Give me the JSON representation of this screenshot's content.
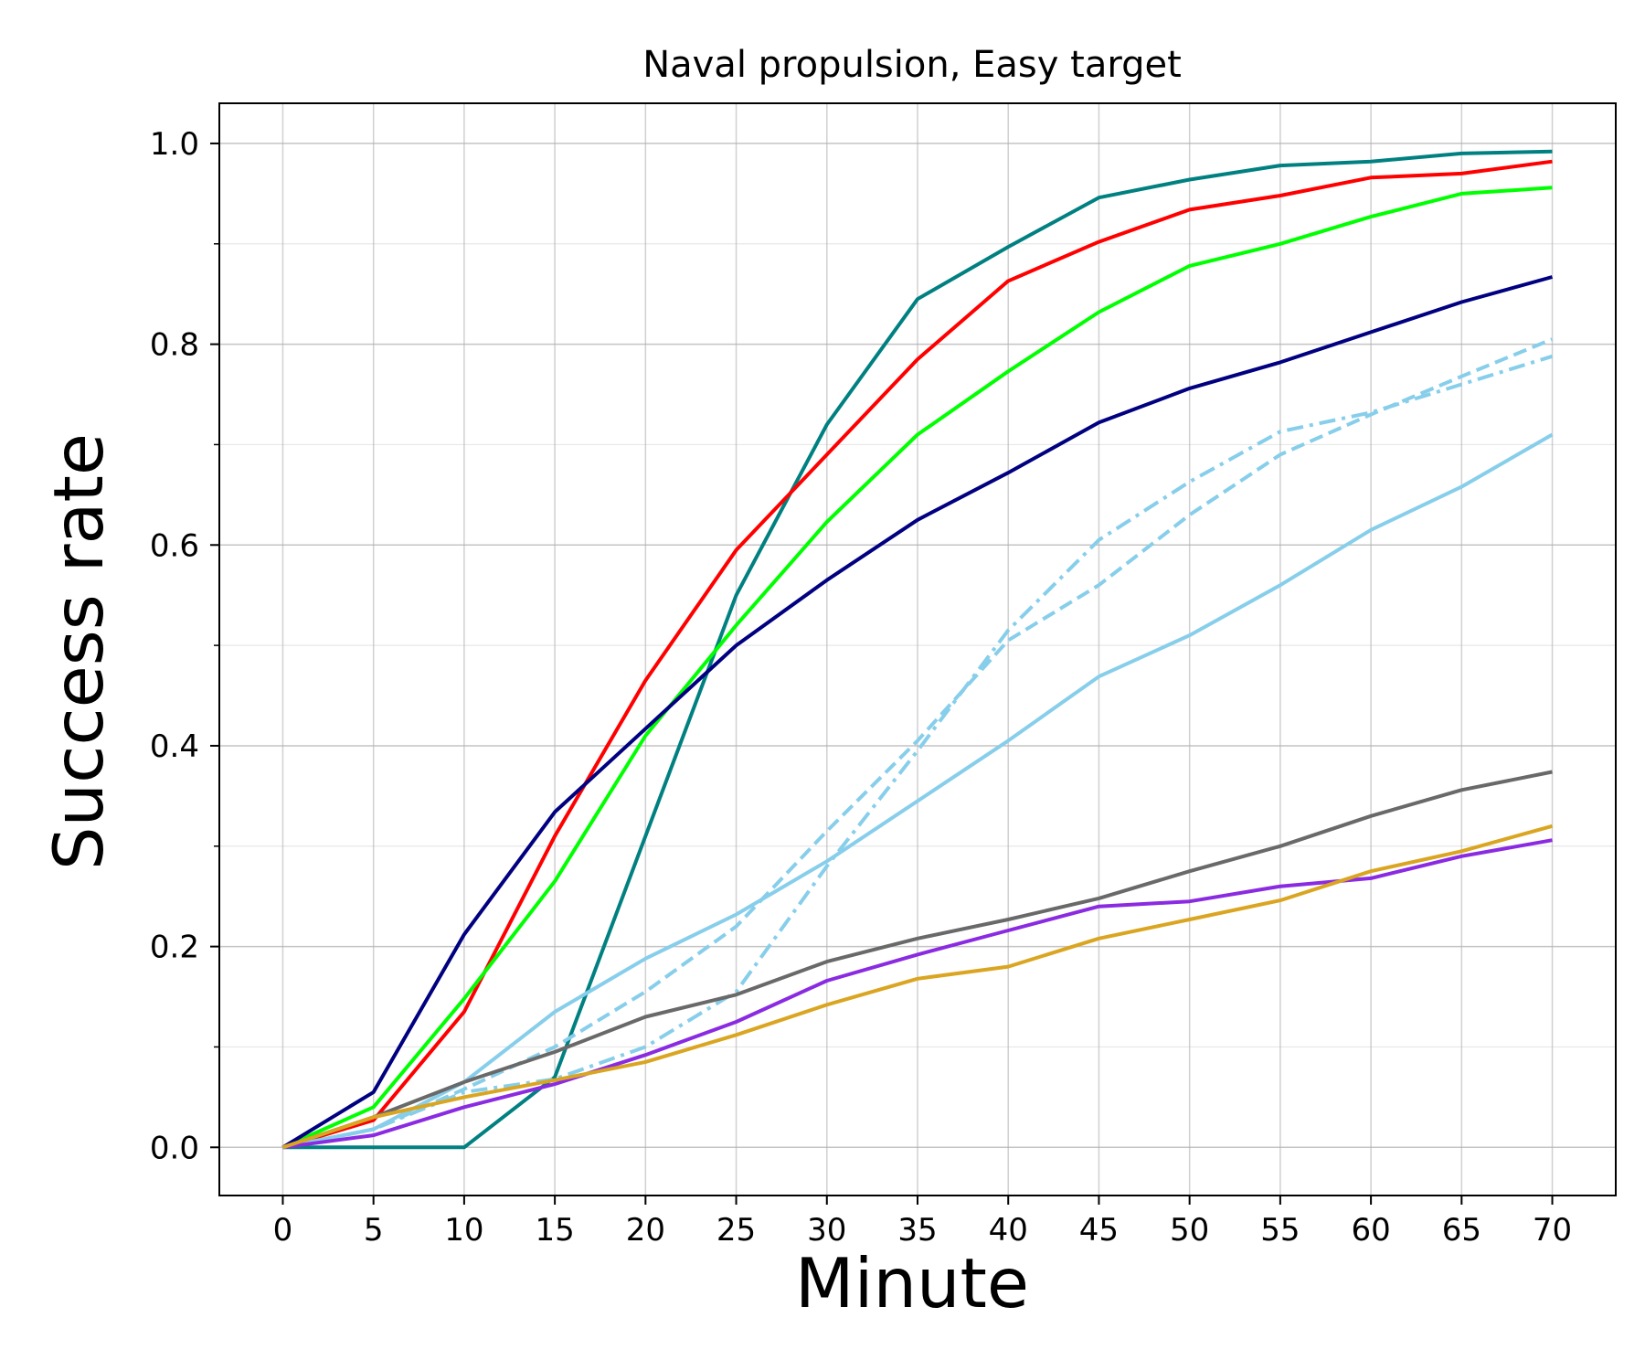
{
  "chart_data": {
    "type": "line",
    "title": "Naval propulsion, Easy target",
    "xlabel": "Minute",
    "ylabel": "Success rate",
    "x": [
      0,
      5,
      10,
      15,
      20,
      25,
      30,
      35,
      40,
      45,
      50,
      55,
      60,
      65,
      70
    ],
    "xlim": [
      -3.5,
      73.5
    ],
    "ylim": [
      -0.048,
      1.04
    ],
    "x_ticks": [
      "0",
      "5",
      "10",
      "15",
      "20",
      "25",
      "30",
      "35",
      "40",
      "45",
      "50",
      "55",
      "60",
      "65",
      "70"
    ],
    "y_ticks": [
      "0.0",
      "0.2",
      "0.4",
      "0.6",
      "0.8",
      "1.0"
    ],
    "y_minor_ticks": [
      0.1,
      0.3,
      0.5,
      0.7,
      0.9
    ],
    "grid": true,
    "legend": "none",
    "series": [
      {
        "color": "#008080",
        "style": "solid",
        "values": [
          0.0,
          0.0,
          0.0,
          0.07,
          0.31,
          0.55,
          0.72,
          0.845,
          0.897,
          0.946,
          0.964,
          0.978,
          0.982,
          0.99,
          0.992
        ]
      },
      {
        "color": "#ff0000",
        "style": "solid",
        "values": [
          0.0,
          0.027,
          0.135,
          0.31,
          0.465,
          0.595,
          0.69,
          0.785,
          0.863,
          0.902,
          0.934,
          0.948,
          0.966,
          0.97,
          0.982
        ]
      },
      {
        "color": "#00ff00",
        "style": "solid",
        "values": [
          0.0,
          0.04,
          0.148,
          0.265,
          0.41,
          0.52,
          0.623,
          0.71,
          0.773,
          0.832,
          0.878,
          0.9,
          0.927,
          0.95,
          0.956
        ]
      },
      {
        "color": "#000080",
        "style": "solid",
        "values": [
          0.0,
          0.055,
          0.212,
          0.334,
          0.417,
          0.5,
          0.565,
          0.625,
          0.672,
          0.722,
          0.756,
          0.782,
          0.812,
          0.842,
          0.867
        ]
      },
      {
        "color": "#87ceeb",
        "style": "dashdot",
        "values": [
          0.0,
          0.018,
          0.055,
          0.068,
          0.1,
          0.155,
          0.28,
          0.395,
          0.515,
          0.605,
          0.663,
          0.713,
          0.732,
          0.76,
          0.788
        ]
      },
      {
        "color": "#87ceeb",
        "style": "dashed",
        "values": [
          0.0,
          0.018,
          0.058,
          0.1,
          0.155,
          0.22,
          0.315,
          0.405,
          0.505,
          0.56,
          0.63,
          0.69,
          0.73,
          0.768,
          0.805
        ]
      },
      {
        "color": "#87ceeb",
        "style": "solid",
        "values": [
          0.0,
          0.018,
          0.065,
          0.135,
          0.188,
          0.232,
          0.285,
          0.345,
          0.405,
          0.469,
          0.51,
          0.56,
          0.615,
          0.658,
          0.71
        ]
      },
      {
        "color": "#696969",
        "style": "solid",
        "values": [
          0.0,
          0.03,
          0.065,
          0.095,
          0.13,
          0.152,
          0.185,
          0.208,
          0.227,
          0.248,
          0.275,
          0.3,
          0.33,
          0.356,
          0.374
        ]
      },
      {
        "color": "#8a2be2",
        "style": "solid",
        "values": [
          0.0,
          0.012,
          0.04,
          0.063,
          0.092,
          0.125,
          0.166,
          0.192,
          0.216,
          0.24,
          0.245,
          0.26,
          0.268,
          0.29,
          0.306
        ]
      },
      {
        "color": "#daa520",
        "style": "solid",
        "values": [
          0.0,
          0.03,
          0.05,
          0.067,
          0.085,
          0.112,
          0.142,
          0.168,
          0.18,
          0.208,
          0.227,
          0.246,
          0.275,
          0.295,
          0.32
        ]
      }
    ]
  }
}
